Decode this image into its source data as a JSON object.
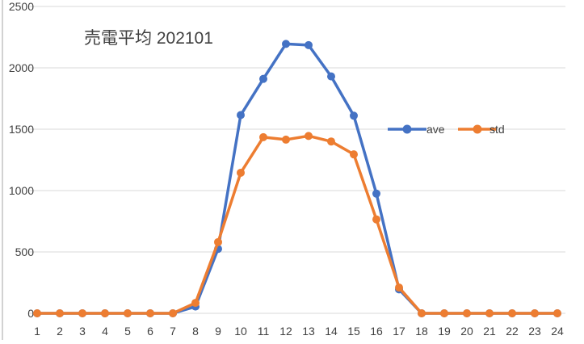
{
  "chart_data": {
    "type": "line",
    "title": "売電平均 202101",
    "xlabel": "",
    "ylabel": "",
    "categories": [
      "1",
      "2",
      "3",
      "4",
      "5",
      "6",
      "7",
      "8",
      "9",
      "10",
      "11",
      "12",
      "13",
      "14",
      "15",
      "16",
      "17",
      "18",
      "19",
      "20",
      "21",
      "22",
      "23",
      "24"
    ],
    "ylim": [
      0,
      2500
    ],
    "yticks": [
      0,
      500,
      1000,
      1500,
      2000,
      2500
    ],
    "grid": true,
    "legend_position": "right",
    "series": [
      {
        "name": "ave",
        "color": "#4472c4",
        "values": [
          0,
          0,
          0,
          0,
          0,
          0,
          0,
          55,
          525,
          1615,
          1910,
          2195,
          2185,
          1930,
          1610,
          975,
          195,
          0,
          0,
          0,
          0,
          0,
          0,
          0
        ]
      },
      {
        "name": "std",
        "color": "#ed7d31",
        "values": [
          0,
          0,
          0,
          0,
          0,
          0,
          0,
          85,
          580,
          1145,
          1435,
          1415,
          1445,
          1400,
          1295,
          765,
          210,
          0,
          0,
          0,
          0,
          0,
          0,
          0
        ]
      }
    ]
  }
}
